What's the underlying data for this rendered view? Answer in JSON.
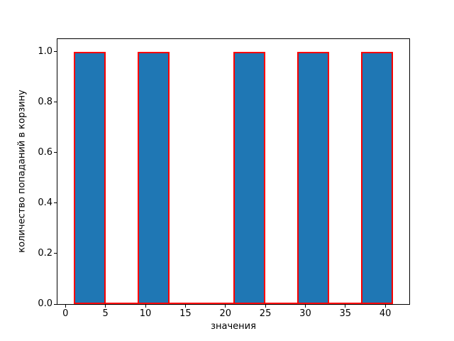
{
  "chart_data": {
    "type": "bar",
    "subtype": "histogram",
    "title": "",
    "xlabel": "значения",
    "ylabel": "количество попаданий в корзину",
    "bin_edges": [
      1,
      5,
      9,
      13,
      17,
      21,
      25,
      29,
      33,
      37,
      41
    ],
    "counts": [
      1,
      0,
      1,
      0,
      0,
      1,
      0,
      1,
      0,
      1
    ],
    "bars": [
      {
        "x_start": 1,
        "x_end": 5,
        "count": 1
      },
      {
        "x_start": 9,
        "x_end": 13,
        "count": 1
      },
      {
        "x_start": 21,
        "x_end": 25,
        "count": 1
      },
      {
        "x_start": 29,
        "x_end": 33,
        "count": 1
      },
      {
        "x_start": 37,
        "x_end": 41,
        "count": 1
      }
    ],
    "xlim": [
      -1,
      43
    ],
    "ylim": [
      0,
      1.05
    ],
    "xticks": {
      "values": [
        0,
        5,
        10,
        15,
        20,
        25,
        30,
        35,
        40
      ],
      "labels": [
        "0",
        "5",
        "10",
        "15",
        "20",
        "25",
        "30",
        "35",
        "40"
      ]
    },
    "yticks": {
      "values": [
        0.0,
        0.2,
        0.4,
        0.6,
        0.8,
        1.0
      ],
      "labels": [
        "0.0",
        "0.2",
        "0.4",
        "0.6",
        "0.8",
        "1.0"
      ]
    },
    "colors": {
      "bar_fill": "#1f77b4",
      "bar_edge": "#ff0000",
      "axis": "#000000",
      "background": "#ffffff"
    },
    "grid": false,
    "legend_position": "none"
  }
}
